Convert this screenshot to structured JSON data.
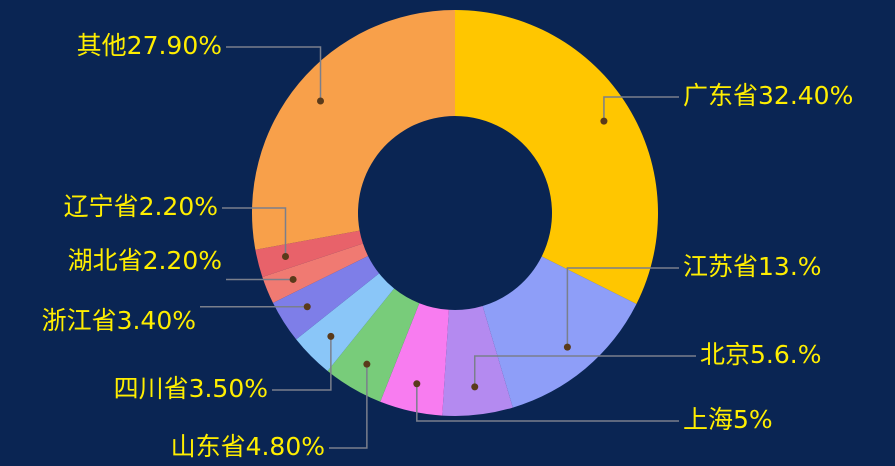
{
  "chart_data": {
    "type": "donut",
    "categories": [
      "广东省",
      "江苏省",
      "北京",
      "上海",
      "山东省",
      "四川省",
      "浙江省",
      "湖北省",
      "辽宁省",
      "其他"
    ],
    "values": [
      32.4,
      13,
      5.6,
      5,
      4.8,
      3.5,
      3.4,
      2.2,
      2.2,
      27.9
    ],
    "value_labels": [
      "32.40%",
      "13.%",
      "5.6.%",
      "5%",
      "4.80%",
      "3.50%",
      "3.40%",
      "2.20%",
      "2.20%",
      "27.90%"
    ],
    "colors": [
      "#ffc600",
      "#8e9ef8",
      "#b48af0",
      "#f87cf0",
      "#78cc7a",
      "#8ac6f8",
      "#7e7ee8",
      "#f07a72",
      "#e8626a",
      "#f8a04a"
    ]
  }
}
